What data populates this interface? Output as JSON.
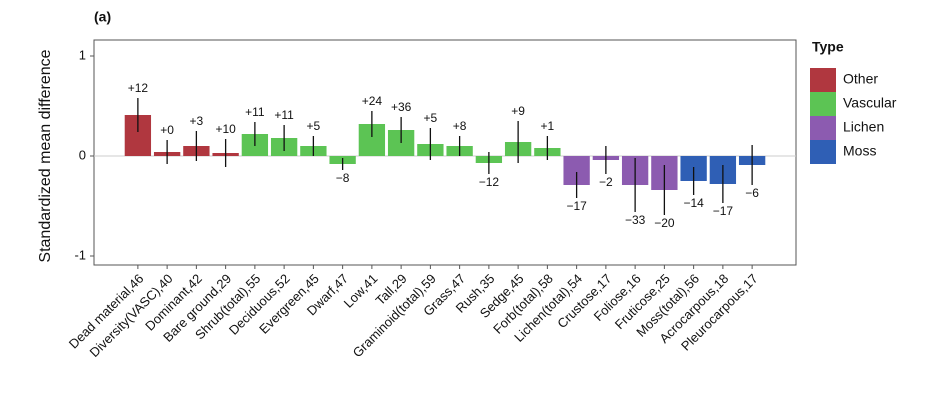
{
  "chart_data": {
    "type": "bar",
    "panel_label": "(a)",
    "y_label": "Standardized mean difference",
    "categories": [
      "Dead material,46",
      "Diversity(VASC),40",
      "Dominant,42",
      "Bare ground,29",
      "Shrub(total),55",
      "Deciduous,52",
      "Evergreen,45",
      "Dwarf,47",
      "Low,41",
      "Tall,29",
      "Graminoid(total),59",
      "Grass,47",
      "Rush,35",
      "Sedge,45",
      "Forb(total),58",
      "Lichen(total),54",
      "Crustose,17",
      "Foliose,16",
      "Fruticose,25",
      "Moss(total),56",
      "Acrocarpous,18",
      "Pleurocarpous,17"
    ],
    "bar_labels": [
      "+12",
      "+0",
      "+3",
      "+10",
      "+11",
      "+11",
      "+5",
      "−8",
      "+24",
      "+36",
      "+5",
      "+8",
      "−12",
      "+9",
      "+1",
      "−17",
      "−2",
      "−33",
      "−20",
      "−14",
      "−17",
      "−6"
    ],
    "series": [
      {
        "name": "Other",
        "color": "#b0373f",
        "values": [
          0.41,
          0.04,
          0.1,
          0.03,
          null,
          null,
          null,
          null,
          null,
          null,
          null,
          null,
          null,
          null,
          null,
          null,
          null,
          null,
          null,
          null,
          null,
          null
        ],
        "errors": [
          0.17,
          0.12,
          0.15,
          0.14,
          null,
          null,
          null,
          null,
          null,
          null,
          null,
          null,
          null,
          null,
          null,
          null,
          null,
          null,
          null,
          null,
          null,
          null
        ]
      },
      {
        "name": "Vascular",
        "color": "#5cc454",
        "values": [
          null,
          null,
          null,
          null,
          0.22,
          0.18,
          0.1,
          -0.08,
          0.32,
          0.26,
          0.12,
          0.1,
          -0.07,
          0.14,
          0.08,
          null,
          null,
          null,
          null,
          null,
          null,
          null
        ],
        "errors": [
          null,
          null,
          null,
          null,
          0.12,
          0.13,
          0.1,
          0.06,
          0.13,
          0.13,
          0.16,
          0.1,
          0.11,
          0.21,
          0.12,
          null,
          null,
          null,
          null,
          null,
          null,
          null
        ]
      },
      {
        "name": "Lichen",
        "color": "#8c5bb0",
        "values": [
          null,
          null,
          null,
          null,
          null,
          null,
          null,
          null,
          null,
          null,
          null,
          null,
          null,
          null,
          null,
          -0.29,
          -0.04,
          -0.29,
          -0.34,
          null,
          null,
          null
        ],
        "errors": [
          null,
          null,
          null,
          null,
          null,
          null,
          null,
          null,
          null,
          null,
          null,
          null,
          null,
          null,
          null,
          0.13,
          0.14,
          0.27,
          0.25,
          null,
          null,
          null
        ]
      },
      {
        "name": "Moss",
        "color": "#2f5fb5",
        "values": [
          null,
          null,
          null,
          null,
          null,
          null,
          null,
          null,
          null,
          null,
          null,
          null,
          null,
          null,
          null,
          null,
          null,
          null,
          null,
          -0.25,
          -0.28,
          -0.09
        ],
        "errors": [
          null,
          null,
          null,
          null,
          null,
          null,
          null,
          null,
          null,
          null,
          null,
          null,
          null,
          null,
          null,
          null,
          null,
          null,
          null,
          0.14,
          0.19,
          0.2
        ]
      }
    ],
    "legend_title": "Type",
    "legend": "right",
    "ylim": [
      -1.09,
      1.16
    ],
    "yticks": [
      -1,
      0,
      1
    ],
    "zero_line": true
  }
}
